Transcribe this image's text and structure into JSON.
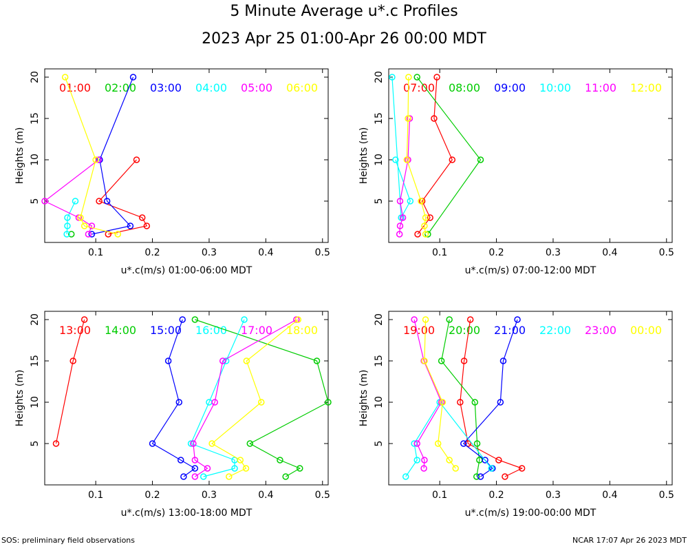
{
  "title": "5 Minute Average u*.c Profiles",
  "subtitle": "2023 Apr 25 01:00-Apr 26 00:00 MDT",
  "footer_left": "SOS: preliminary field observations",
  "footer_right": "NCAR 17:07 Apr 26 2023 MDT",
  "chart_data": [
    {
      "type": "line",
      "xlabel": "u*.c(m/s) 01:00-06:00 MDT",
      "ylabel": "Heights (m)",
      "xlim": [
        0.01,
        0.51
      ],
      "ylim": [
        0,
        21
      ],
      "xticks": [
        "0.1",
        "0.2",
        "0.3",
        "0.4",
        "0.5"
      ],
      "yticks": [
        "5",
        "10",
        "15",
        "20"
      ],
      "legend_placement": "top",
      "series": [
        {
          "name": "01:00",
          "color": "#ff0000",
          "points": [
            [
              0.122,
              1
            ],
            [
              0.19,
              2
            ],
            [
              0.182,
              3
            ],
            [
              0.106,
              5
            ],
            [
              0.172,
              10
            ]
          ]
        },
        {
          "name": "02:00",
          "color": "#00cc00",
          "points": [
            [
              0.057,
              1
            ]
          ]
        },
        {
          "name": "03:00",
          "color": "#0000ff",
          "points": [
            [
              0.093,
              1
            ],
            [
              0.161,
              2
            ],
            [
              0.12,
              5
            ],
            [
              0.107,
              10
            ],
            [
              0.166,
              20
            ]
          ]
        },
        {
          "name": "04:00",
          "color": "#00ffff",
          "points": [
            [
              0.049,
              1
            ],
            [
              0.05,
              2
            ],
            [
              0.05,
              3
            ],
            [
              0.064,
              5
            ]
          ]
        },
        {
          "name": "05:00",
          "color": "#ff00ff",
          "points": [
            [
              0.087,
              1
            ],
            [
              0.093,
              2
            ],
            [
              0.07,
              3
            ],
            [
              0.01,
              5
            ],
            [
              0.105,
              10
            ]
          ]
        },
        {
          "name": "06:00",
          "color": "#ffff00",
          "points": [
            [
              0.139,
              1
            ],
            [
              0.08,
              2
            ],
            [
              0.073,
              3
            ],
            [
              0.1,
              10
            ],
            [
              0.046,
              20
            ]
          ]
        }
      ]
    },
    {
      "type": "line",
      "xlabel": "u*.c(m/s) 07:00-12:00 MDT",
      "ylabel": "Heights (m)",
      "xlim": [
        0.01,
        0.51
      ],
      "ylim": [
        0,
        21
      ],
      "xticks": [
        "0.1",
        "0.2",
        "0.3",
        "0.4",
        "0.5"
      ],
      "yticks": [
        "5",
        "10",
        "15",
        "20"
      ],
      "legend_placement": "top",
      "series": [
        {
          "name": "07:00",
          "color": "#ff0000",
          "points": [
            [
              0.061,
              1
            ],
            [
              0.083,
              3
            ],
            [
              0.069,
              5
            ],
            [
              0.122,
              10
            ],
            [
              0.09,
              15
            ],
            [
              0.095,
              20
            ]
          ]
        },
        {
          "name": "08:00",
          "color": "#00cc00",
          "points": [
            [
              0.079,
              1
            ],
            [
              0.172,
              10
            ],
            [
              0.06,
              20
            ]
          ]
        },
        {
          "name": "09:00",
          "color": "#0000ff",
          "points": []
        },
        {
          "name": "10:00",
          "color": "#00ffff",
          "points": [
            [
              0.022,
              10
            ],
            [
              0.048,
              5
            ],
            [
              0.032,
              3
            ],
            [
              0.016,
              20
            ]
          ]
        },
        {
          "name": "11:00",
          "color": "#ff00ff",
          "points": [
            [
              0.029,
              1
            ],
            [
              0.03,
              2
            ],
            [
              0.035,
              3
            ],
            [
              0.03,
              5
            ],
            [
              0.044,
              10
            ],
            [
              0.047,
              15
            ]
          ]
        },
        {
          "name": "12:00",
          "color": "#ffff00",
          "points": [
            [
              0.075,
              1
            ],
            [
              0.073,
              2
            ],
            [
              0.075,
              3
            ],
            [
              0.067,
              5
            ],
            [
              0.042,
              10
            ],
            [
              0.044,
              15
            ],
            [
              0.045,
              20
            ]
          ]
        }
      ]
    },
    {
      "type": "line",
      "xlabel": "u*.c(m/s) 13:00-18:00 MDT",
      "ylabel": "Heights (m)",
      "xlim": [
        0.01,
        0.51
      ],
      "ylim": [
        0,
        21
      ],
      "xticks": [
        "0.1",
        "0.2",
        "0.3",
        "0.4",
        "0.5"
      ],
      "yticks": [
        "5",
        "10",
        "15",
        "20"
      ],
      "legend_placement": "top",
      "series": [
        {
          "name": "13:00",
          "color": "#ff0000",
          "points": [
            [
              0.03,
              5
            ],
            [
              0.06,
              15
            ],
            [
              0.08,
              20
            ]
          ]
        },
        {
          "name": "14:00",
          "color": "#00cc00",
          "points": [
            [
              0.435,
              1
            ],
            [
              0.46,
              2
            ],
            [
              0.425,
              3
            ],
            [
              0.372,
              5
            ],
            [
              0.51,
              10
            ],
            [
              0.49,
              15
            ],
            [
              0.275,
              20
            ]
          ]
        },
        {
          "name": "15:00",
          "color": "#0000ff",
          "points": [
            [
              0.255,
              1
            ],
            [
              0.275,
              2
            ],
            [
              0.25,
              3
            ],
            [
              0.2,
              5
            ],
            [
              0.247,
              10
            ],
            [
              0.228,
              15
            ],
            [
              0.253,
              20
            ]
          ]
        },
        {
          "name": "16:00",
          "color": "#00ffff",
          "points": [
            [
              0.29,
              1
            ],
            [
              0.345,
              2
            ],
            [
              0.345,
              3
            ],
            [
              0.268,
              5
            ],
            [
              0.3,
              10
            ],
            [
              0.33,
              15
            ],
            [
              0.362,
              20
            ]
          ]
        },
        {
          "name": "17:00",
          "color": "#ff00ff",
          "points": [
            [
              0.275,
              1
            ],
            [
              0.297,
              2
            ],
            [
              0.275,
              3
            ],
            [
              0.272,
              5
            ],
            [
              0.31,
              10
            ],
            [
              0.324,
              15
            ],
            [
              0.454,
              20
            ]
          ]
        },
        {
          "name": "18:00",
          "color": "#ffff00",
          "points": [
            [
              0.335,
              1
            ],
            [
              0.365,
              2
            ],
            [
              0.355,
              3
            ],
            [
              0.305,
              5
            ],
            [
              0.392,
              10
            ],
            [
              0.366,
              15
            ],
            [
              0.457,
              20
            ]
          ]
        }
      ]
    },
    {
      "type": "line",
      "xlabel": "u*.c(m/s) 19:00-00:00 MDT",
      "ylabel": "Heights (m)",
      "xlim": [
        0.01,
        0.51
      ],
      "ylim": [
        0,
        21
      ],
      "xticks": [
        "0.1",
        "0.2",
        "0.3",
        "0.4",
        "0.5"
      ],
      "yticks": [
        "5",
        "10",
        "15",
        "20"
      ],
      "legend_placement": "top",
      "series": [
        {
          "name": "19:00",
          "color": "#ff0000",
          "points": [
            [
              0.215,
              1
            ],
            [
              0.245,
              2
            ],
            [
              0.204,
              3
            ],
            [
              0.15,
              5
            ],
            [
              0.136,
              10
            ],
            [
              0.143,
              15
            ],
            [
              0.154,
              20
            ]
          ]
        },
        {
          "name": "20:00",
          "color": "#00cc00",
          "points": [
            [
              0.165,
              1
            ],
            [
              0.17,
              3
            ],
            [
              0.166,
              5
            ],
            [
              0.162,
              10
            ],
            [
              0.103,
              15
            ],
            [
              0.117,
              20
            ]
          ]
        },
        {
          "name": "21:00",
          "color": "#0000ff",
          "points": [
            [
              0.172,
              1
            ],
            [
              0.193,
              2
            ],
            [
              0.18,
              3
            ],
            [
              0.142,
              5
            ],
            [
              0.207,
              10
            ],
            [
              0.212,
              15
            ],
            [
              0.237,
              20
            ]
          ]
        },
        {
          "name": "22:00",
          "color": "#00ffff",
          "points": [
            [
              0.04,
              1
            ],
            [
              0.06,
              3
            ],
            [
              0.055,
              5
            ],
            [
              0.1,
              10
            ],
            [
              0.191,
              2
            ]
          ]
        },
        {
          "name": "23:00",
          "color": "#ff00ff",
          "points": [
            [
              0.072,
              2
            ],
            [
              0.073,
              3
            ],
            [
              0.06,
              5
            ],
            [
              0.103,
              10
            ],
            [
              0.072,
              15
            ],
            [
              0.055,
              20
            ]
          ]
        },
        {
          "name": "00:00",
          "color": "#ffff00",
          "points": [
            [
              0.128,
              2
            ],
            [
              0.117,
              3
            ],
            [
              0.097,
              5
            ],
            [
              0.105,
              10
            ],
            [
              0.073,
              15
            ],
            [
              0.075,
              20
            ]
          ]
        }
      ]
    }
  ]
}
